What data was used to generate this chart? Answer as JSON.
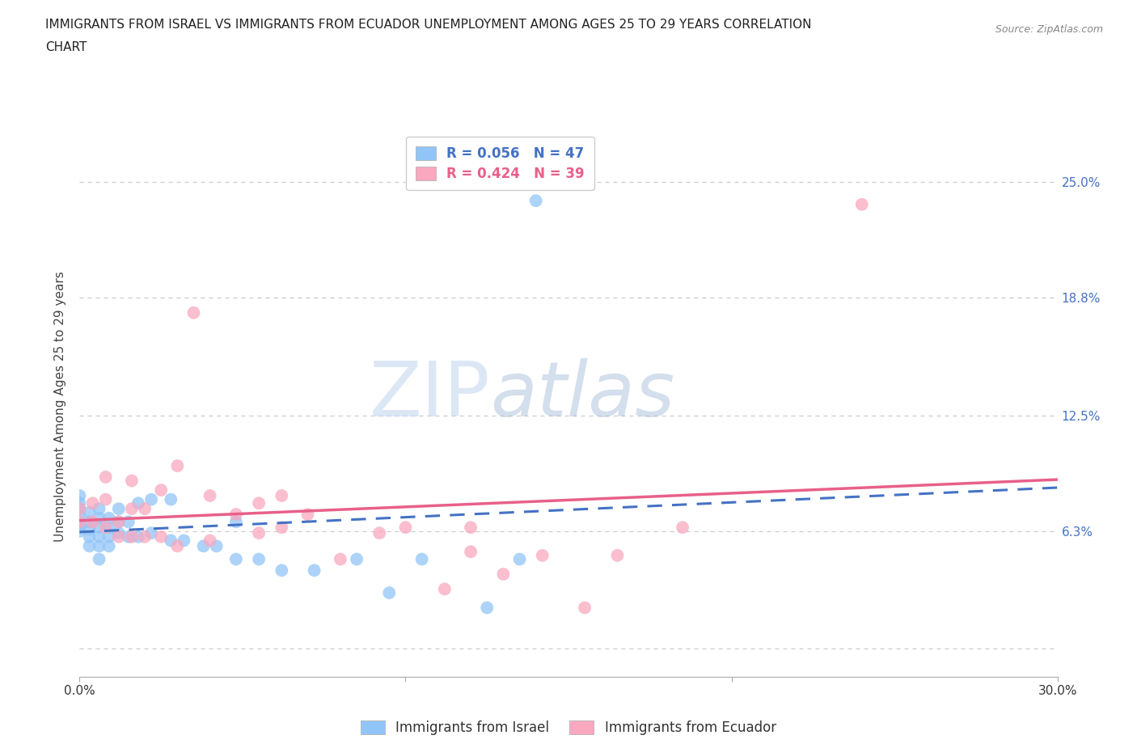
{
  "title_line1": "IMMIGRANTS FROM ISRAEL VS IMMIGRANTS FROM ECUADOR UNEMPLOYMENT AMONG AGES 25 TO 29 YEARS CORRELATION",
  "title_line2": "CHART",
  "source": "Source: ZipAtlas.com",
  "ylabel": "Unemployment Among Ages 25 to 29 years",
  "xlim": [
    0.0,
    0.3
  ],
  "ylim": [
    -0.015,
    0.275
  ],
  "yticks": [
    0.0,
    0.063,
    0.125,
    0.188,
    0.25
  ],
  "ytick_labels": [
    "",
    "6.3%",
    "12.5%",
    "18.8%",
    "25.0%"
  ],
  "xticks": [
    0.0,
    0.1,
    0.2,
    0.3
  ],
  "xtick_labels": [
    "0.0%",
    "",
    "",
    "30.0%"
  ],
  "R_israel": 0.056,
  "N_israel": 47,
  "R_ecuador": 0.424,
  "N_ecuador": 39,
  "color_israel": "#92C5F7",
  "color_ecuador": "#F9A8C0",
  "line_color_israel": "#4472C4",
  "line_color_ecuador": "#E8608A",
  "watermark_zip": "ZIP",
  "watermark_atlas": "atlas",
  "israel_x": [
    0.0,
    0.0,
    0.0,
    0.0,
    0.0,
    0.0,
    0.0,
    0.003,
    0.003,
    0.003,
    0.003,
    0.003,
    0.006,
    0.006,
    0.006,
    0.006,
    0.006,
    0.006,
    0.009,
    0.009,
    0.009,
    0.009,
    0.012,
    0.012,
    0.012,
    0.015,
    0.015,
    0.018,
    0.018,
    0.022,
    0.022,
    0.028,
    0.028,
    0.032,
    0.038,
    0.042,
    0.048,
    0.048,
    0.055,
    0.062,
    0.072,
    0.085,
    0.095,
    0.105,
    0.125,
    0.135,
    0.14
  ],
  "israel_y": [
    0.063,
    0.065,
    0.068,
    0.072,
    0.075,
    0.078,
    0.082,
    0.055,
    0.06,
    0.064,
    0.068,
    0.073,
    0.048,
    0.055,
    0.06,
    0.065,
    0.07,
    0.075,
    0.055,
    0.06,
    0.065,
    0.07,
    0.062,
    0.068,
    0.075,
    0.06,
    0.068,
    0.06,
    0.078,
    0.062,
    0.08,
    0.058,
    0.08,
    0.058,
    0.055,
    0.055,
    0.048,
    0.068,
    0.048,
    0.042,
    0.042,
    0.048,
    0.03,
    0.048,
    0.022,
    0.048,
    0.24
  ],
  "ecuador_x": [
    0.0,
    0.0,
    0.004,
    0.004,
    0.008,
    0.008,
    0.008,
    0.012,
    0.012,
    0.016,
    0.016,
    0.016,
    0.02,
    0.02,
    0.025,
    0.025,
    0.03,
    0.03,
    0.035,
    0.04,
    0.04,
    0.048,
    0.055,
    0.055,
    0.062,
    0.062,
    0.07,
    0.08,
    0.092,
    0.1,
    0.112,
    0.12,
    0.12,
    0.13,
    0.142,
    0.155,
    0.165,
    0.185,
    0.24
  ],
  "ecuador_y": [
    0.068,
    0.075,
    0.068,
    0.078,
    0.065,
    0.08,
    0.092,
    0.06,
    0.068,
    0.06,
    0.075,
    0.09,
    0.06,
    0.075,
    0.06,
    0.085,
    0.055,
    0.098,
    0.18,
    0.058,
    0.082,
    0.072,
    0.062,
    0.078,
    0.065,
    0.082,
    0.072,
    0.048,
    0.062,
    0.065,
    0.032,
    0.052,
    0.065,
    0.04,
    0.05,
    0.022,
    0.05,
    0.065,
    0.238
  ]
}
